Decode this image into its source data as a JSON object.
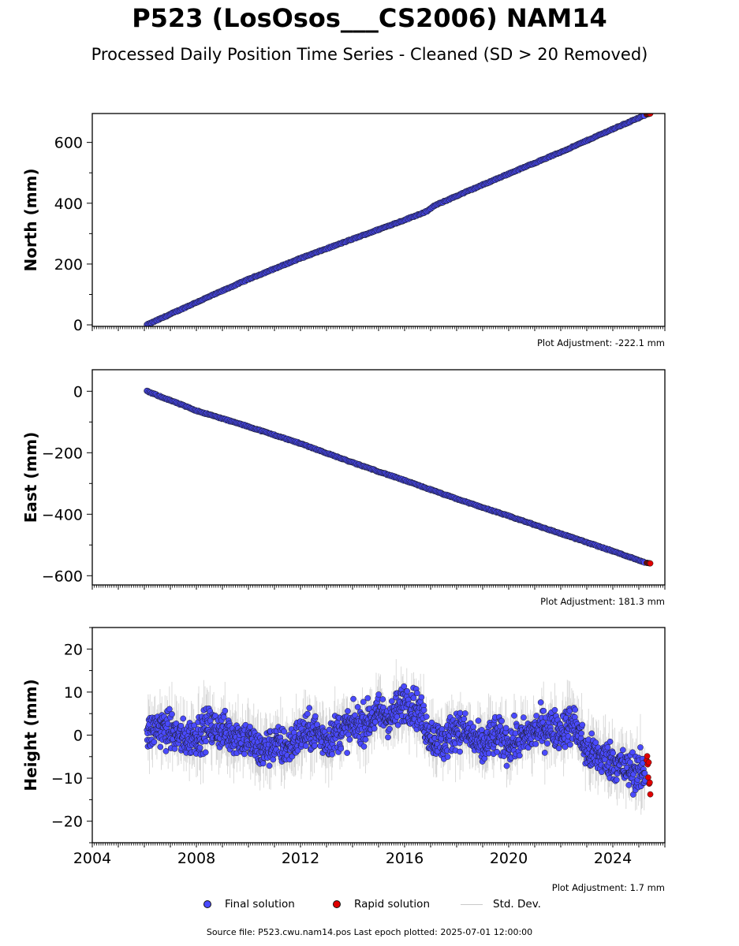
{
  "header": {
    "title": "P523 (LosOsos___CS2006) NAM14",
    "subtitle": "Processed Daily Position Time Series - Cleaned (SD > 20 Removed)"
  },
  "footer": {
    "source": "Source file: P523.cwu.nam14.pos  Last epoch plotted: 2025-07-01 12:00:00"
  },
  "legend": {
    "final": "Final solution",
    "rapid": "Rapid solution",
    "std": "Std. Dev."
  },
  "colors": {
    "final": "#4a4aff",
    "rapid": "#e00000",
    "std": "#bdbdbd",
    "marker_edge": "#1a1a1a"
  },
  "chart_data": [
    {
      "type": "scatter",
      "ylabel": "North (mm)",
      "xlim": [
        2004,
        2026
      ],
      "ylim": [
        -5,
        695
      ],
      "yticks": [
        0,
        200,
        400,
        600
      ],
      "adjustment": "Plot Adjustment: -222.1 mm",
      "show_x_labels": false,
      "series": [
        {
          "name": "Final solution",
          "x": [
            2006.1,
            2008,
            2010,
            2012,
            2014,
            2016,
            2016.9,
            2017.1,
            2018,
            2020,
            2022,
            2024,
            2025.25
          ],
          "y": [
            0,
            74,
            150,
            219,
            282,
            345,
            375,
            390,
            424,
            497,
            568,
            644,
            690
          ]
        },
        {
          "name": "Rapid solution",
          "x": [
            2025.3,
            2025.45
          ],
          "y": [
            692,
            695
          ]
        }
      ]
    },
    {
      "type": "scatter",
      "ylabel": "East (mm)",
      "xlim": [
        2004,
        2026
      ],
      "ylim": [
        -630,
        70
      ],
      "yticks": [
        0,
        -200,
        -400,
        -600
      ],
      "adjustment": "Plot Adjustment: 181.3 mm",
      "show_x_labels": false,
      "series": [
        {
          "name": "Final solution",
          "x": [
            2006.1,
            2008,
            2010,
            2012,
            2014,
            2016,
            2018,
            2020,
            2022,
            2024,
            2025.25
          ],
          "y": [
            0,
            -63,
            -115,
            -170,
            -232,
            -290,
            -350,
            -406,
            -463,
            -520,
            -557
          ]
        },
        {
          "name": "Rapid solution",
          "x": [
            2025.3,
            2025.45
          ],
          "y": [
            -558,
            -560
          ]
        }
      ]
    },
    {
      "type": "scatter",
      "ylabel": "Height (mm)",
      "xlim": [
        2004,
        2026
      ],
      "ylim": [
        -25,
        25
      ],
      "yticks": [
        20,
        10,
        0,
        -10,
        -20
      ],
      "xticks": [
        2004,
        2008,
        2012,
        2016,
        2020,
        2024
      ],
      "adjustment": "Plot Adjustment: 1.7 mm",
      "show_x_labels": true,
      "series": [
        {
          "name": "Final solution",
          "x": [
            2006.1,
            2006.5,
            2007,
            2007.5,
            2008,
            2008.5,
            2009,
            2009.5,
            2010,
            2010.5,
            2011,
            2011.5,
            2012,
            2012.5,
            2013,
            2013.5,
            2014,
            2014.5,
            2015,
            2015.5,
            2016,
            2016.5,
            2017,
            2017.5,
            2018,
            2018.5,
            2019,
            2019.5,
            2020,
            2020.5,
            2021,
            2021.5,
            2022,
            2022.5,
            2023,
            2023.5,
            2024,
            2024.5,
            2025.25
          ],
          "y": [
            0,
            2,
            1,
            -1,
            0,
            2,
            1,
            0,
            -1,
            -4,
            -2,
            -3,
            0,
            1,
            -1,
            1,
            2,
            3,
            5,
            4,
            8,
            6,
            0,
            -2,
            2,
            0,
            -3,
            0,
            -2,
            -1,
            1,
            2,
            1,
            3,
            -4,
            -5,
            -6,
            -8,
            -9
          ]
        },
        {
          "name": "Rapid solution",
          "x": [
            2025.3,
            2025.35,
            2025.4,
            2025.45
          ],
          "y": [
            -6,
            -8,
            -10,
            -12
          ]
        }
      ]
    }
  ]
}
